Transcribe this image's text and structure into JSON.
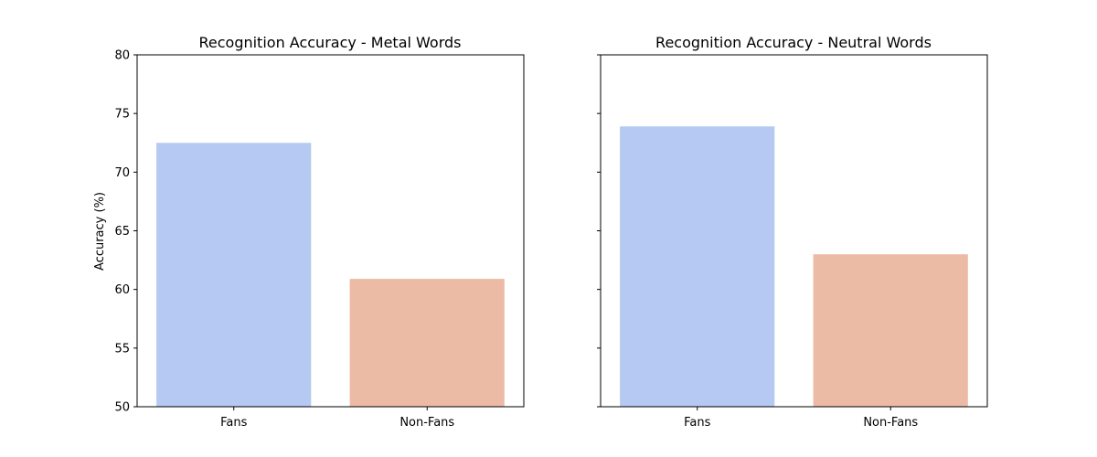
{
  "chart_data": [
    {
      "type": "bar",
      "title": "Recognition Accuracy - Metal Words",
      "categories": [
        "Fans",
        "Non-Fans"
      ],
      "values": [
        72.5,
        60.9
      ],
      "colors": [
        "#b5c9f2",
        "#ecbba6"
      ],
      "ylabel": "Accuracy (%)",
      "xlabel": "",
      "ylim": [
        50,
        80
      ],
      "yticks": [
        "50",
        "55",
        "60",
        "65",
        "70",
        "75",
        "80"
      ],
      "grid": false
    },
    {
      "type": "bar",
      "title": "Recognition Accuracy - Neutral Words",
      "categories": [
        "Fans",
        "Non-Fans"
      ],
      "values": [
        73.9,
        63.0
      ],
      "colors": [
        "#b5c9f2",
        "#ecbba6"
      ],
      "ylabel": "",
      "xlabel": "",
      "ylim": [
        50,
        80
      ],
      "yticks": [],
      "shared_y": true,
      "grid": false
    }
  ]
}
